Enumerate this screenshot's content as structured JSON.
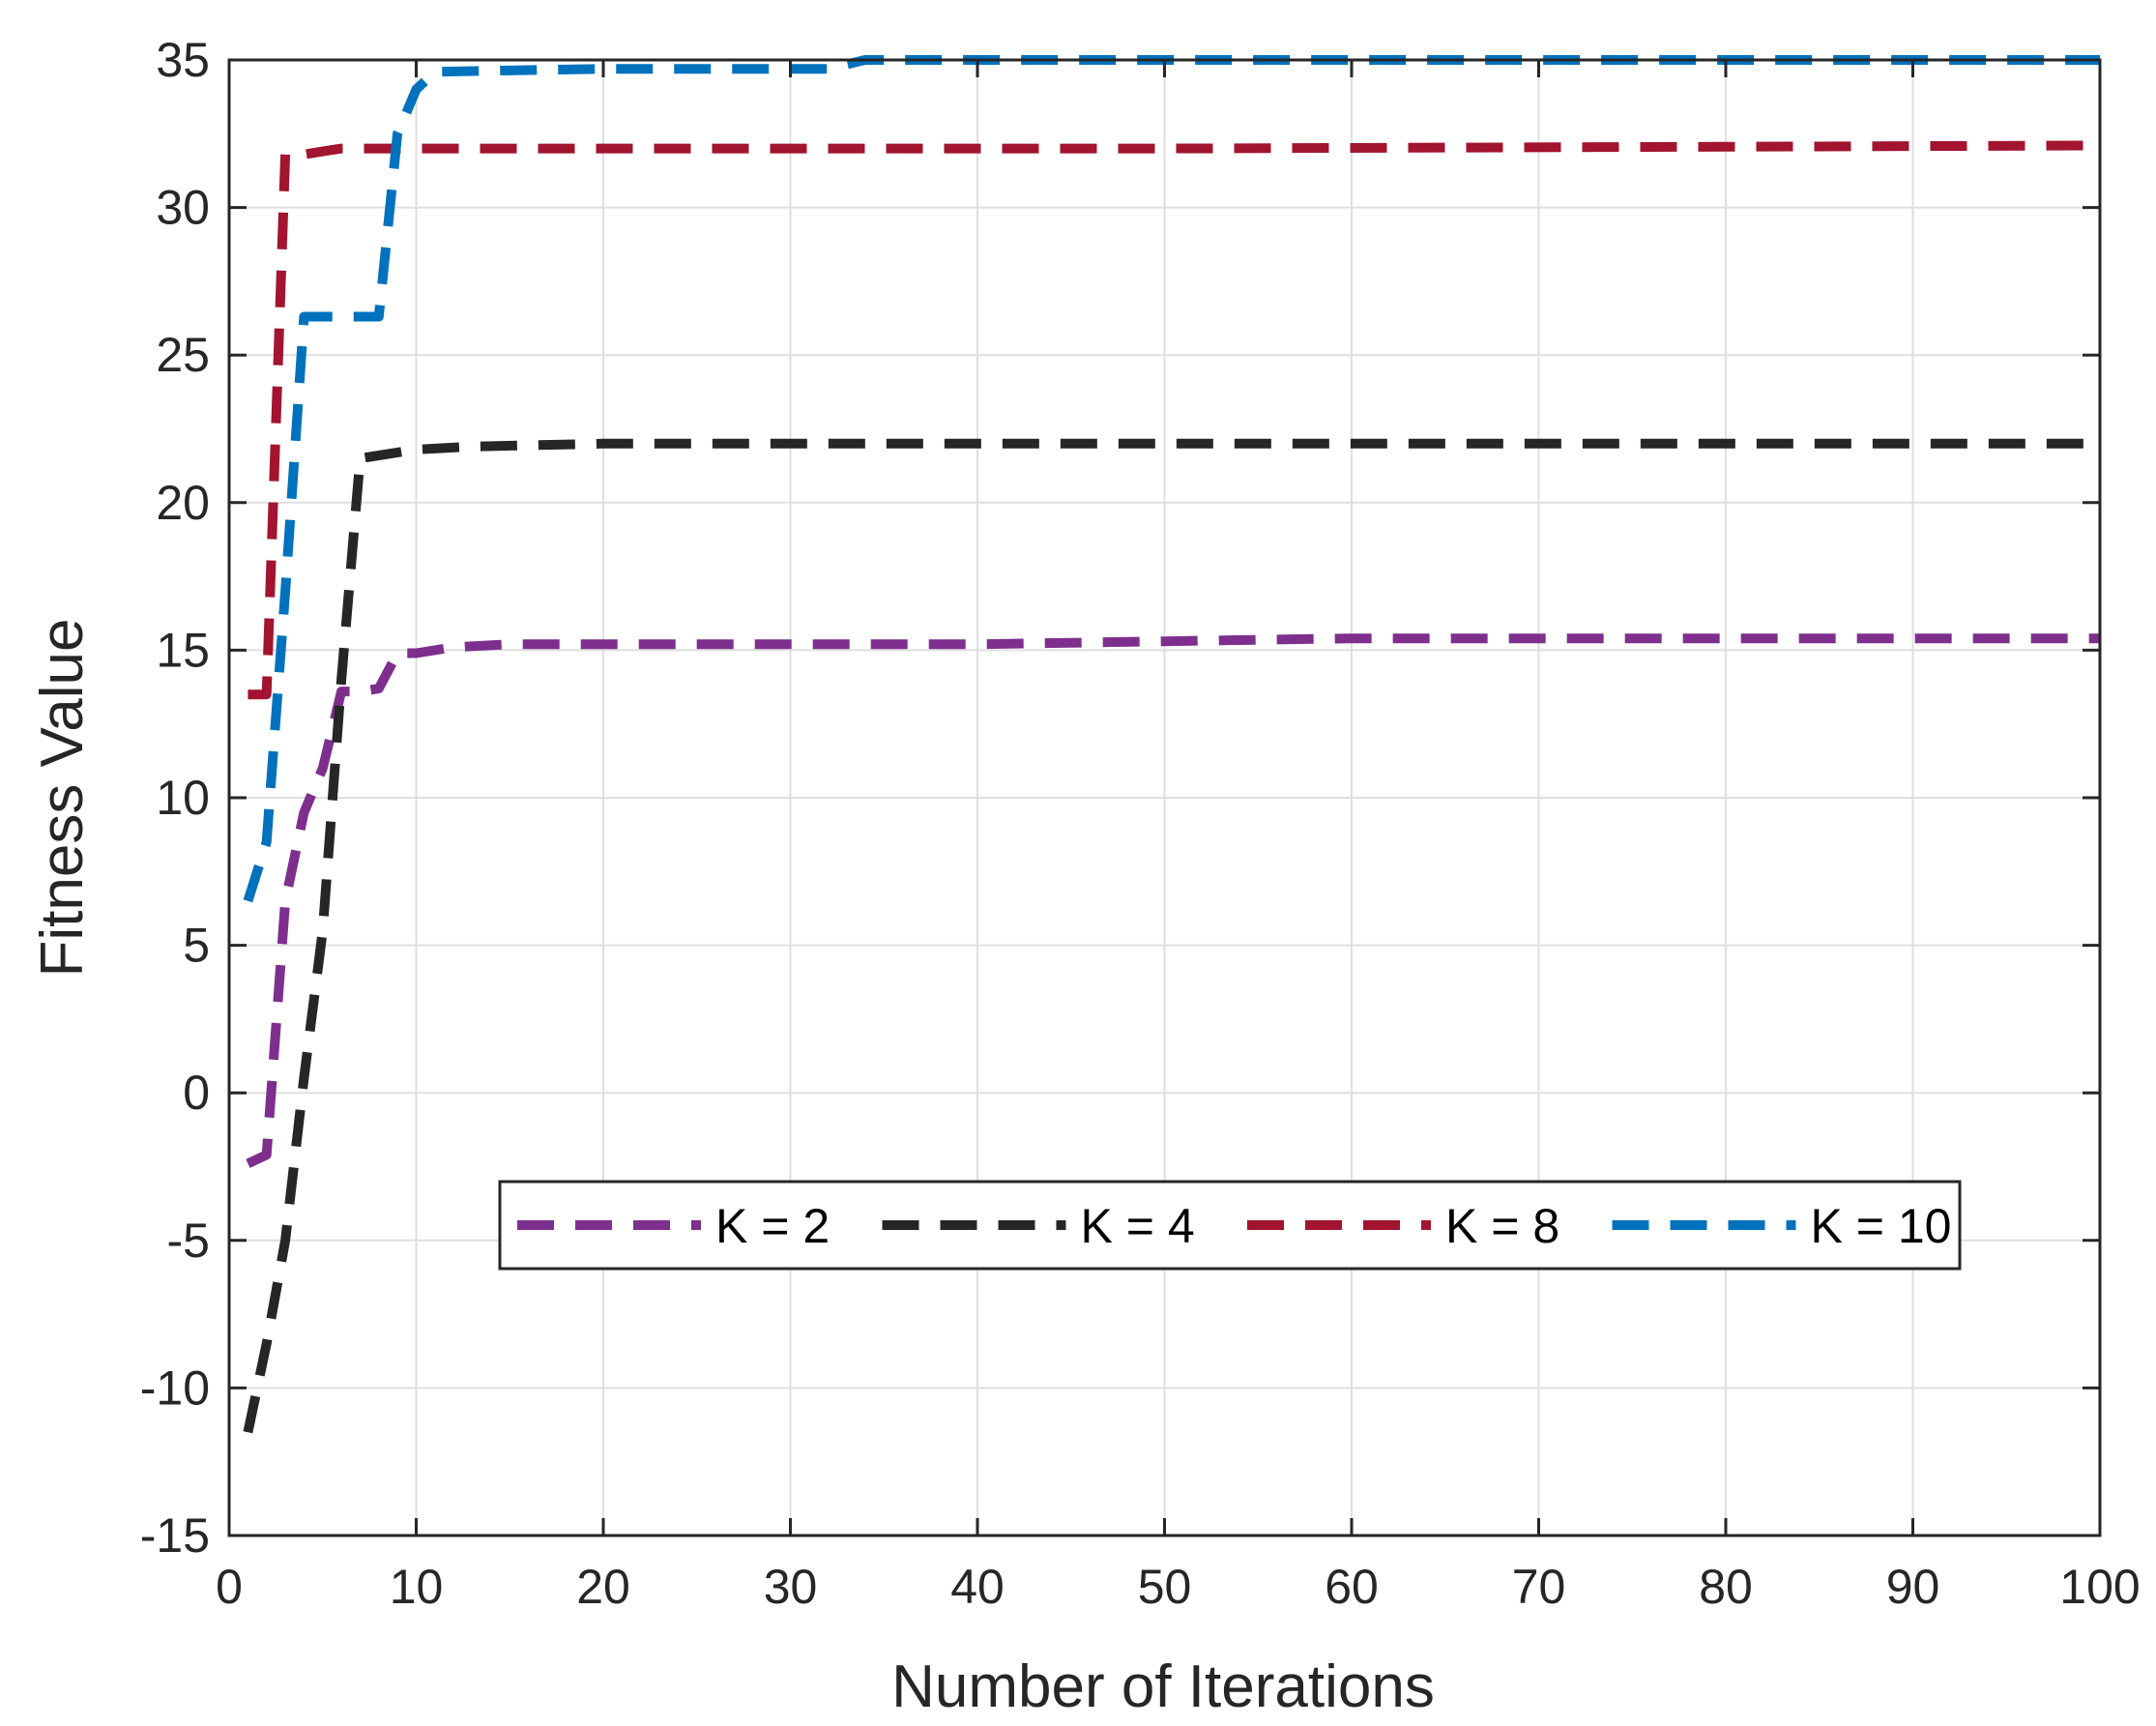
{
  "chart_data": {
    "type": "line",
    "xlabel": "Number of Iterations",
    "ylabel": "Fitness Value",
    "xlim": [
      0,
      100
    ],
    "ylim": [
      -15,
      35
    ],
    "xticks": [
      0,
      10,
      20,
      30,
      40,
      50,
      60,
      70,
      80,
      90,
      100
    ],
    "yticks": [
      -15,
      -10,
      -5,
      0,
      5,
      10,
      15,
      20,
      25,
      30,
      35
    ],
    "grid": true,
    "line_style": "dashed",
    "legend_position": "lower-center",
    "legend_orientation": "horizontal",
    "series": [
      {
        "name": "K = 2",
        "color": "#7e2f8e",
        "x": [
          1,
          2,
          3,
          4,
          5,
          6,
          7,
          8,
          9,
          10,
          12,
          15,
          20,
          30,
          40,
          50,
          60,
          100
        ],
        "y": [
          -2.4,
          -2.1,
          6.5,
          9.5,
          11.0,
          13.6,
          13.6,
          13.7,
          14.9,
          14.9,
          15.1,
          15.2,
          15.2,
          15.2,
          15.2,
          15.3,
          15.4,
          15.4
        ]
      },
      {
        "name": "K = 4",
        "color": "#262626",
        "x": [
          1,
          2,
          3,
          4,
          5,
          6,
          7,
          8,
          10,
          13,
          20,
          30,
          40,
          100
        ],
        "y": [
          -11.5,
          -8.5,
          -5.0,
          0.5,
          5.5,
          14.0,
          21.5,
          21.6,
          21.8,
          21.9,
          22.0,
          22.0,
          22.0,
          22.0
        ]
      },
      {
        "name": "K = 8",
        "color": "#a2142f",
        "x": [
          1,
          2,
          3,
          4,
          5,
          6,
          7,
          8,
          10,
          20,
          30,
          50,
          100
        ],
        "y": [
          13.5,
          13.5,
          31.8,
          31.8,
          31.9,
          32.0,
          32.0,
          32.0,
          32.0,
          32.0,
          32.0,
          32.0,
          32.1
        ]
      },
      {
        "name": "K = 10",
        "color": "#0072bd",
        "x": [
          1,
          2,
          3,
          4,
          5,
          6,
          7,
          8,
          9,
          10,
          11,
          20,
          32,
          34,
          50,
          100
        ],
        "y": [
          6.5,
          8.5,
          17.0,
          26.3,
          26.3,
          26.3,
          26.3,
          26.3,
          32.5,
          34.0,
          34.6,
          34.7,
          34.7,
          35.0,
          35.0,
          35.0
        ]
      }
    ]
  }
}
